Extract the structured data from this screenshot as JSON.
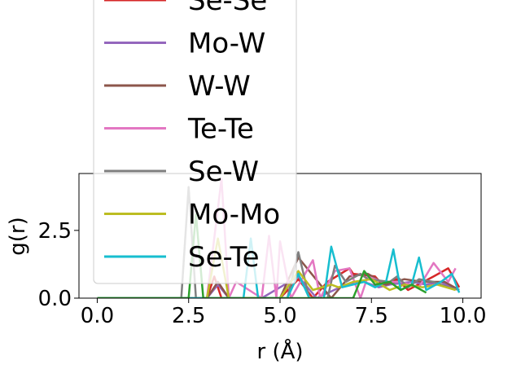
{
  "chart_data": {
    "type": "line",
    "xlabel": "r (Å)",
    "ylabel": "g(r)",
    "xlim": [
      -0.5,
      10.5
    ],
    "ylim": [
      0,
      4.6
    ],
    "xticks": [
      0.0,
      2.5,
      5.0,
      7.5,
      10.0
    ],
    "xtick_labels": [
      "0.0",
      "2.5",
      "5.0",
      "7.5",
      "10.0"
    ],
    "yticks": [
      0.0,
      2.5
    ],
    "ytick_labels": [
      "0.0",
      "2.5"
    ],
    "grid": false,
    "legend": "upper-left",
    "series": [
      {
        "name": "Se-Se",
        "color": "#d62728",
        "x": [
          0.0,
          2.0,
          3.0,
          3.2,
          3.4,
          4.4,
          4.7,
          5.0,
          5.5,
          5.9,
          6.3,
          6.9,
          7.0,
          7.6,
          7.8,
          8.2,
          8.5,
          9.2,
          9.6,
          9.9
        ],
        "y": [
          0,
          0,
          0,
          0.8,
          0,
          0,
          0,
          0,
          0.7,
          0,
          0.6,
          1.1,
          0.9,
          0.8,
          0.5,
          0.7,
          0.3,
          0.8,
          1.1,
          0.4
        ]
      },
      {
        "name": "Mo-W",
        "color": "#9467bd",
        "x": [
          0.0,
          3.0,
          3.3,
          3.6,
          4.5,
          5.5,
          6.0,
          6.8,
          7.3,
          7.7,
          8.0,
          8.6,
          9.0,
          9.4,
          9.8
        ],
        "y": [
          0,
          0,
          0.5,
          0,
          0,
          0.8,
          0,
          0.5,
          0.6,
          0.4,
          0.5,
          0.6,
          0.5,
          0.6,
          0.3
        ]
      },
      {
        "name": "W-W",
        "color": "#8c564b",
        "x": [
          0.0,
          3.0,
          3.3,
          3.6,
          5.0,
          5.5,
          6.4,
          6.9,
          7.4,
          7.9,
          8.4,
          8.9,
          9.5,
          9.9
        ],
        "y": [
          0,
          0,
          0.6,
          0,
          0,
          1.5,
          0,
          0.8,
          0.9,
          0.5,
          0.7,
          0.6,
          0.6,
          0.3
        ]
      },
      {
        "name": "Te-Te",
        "color": "#e377c2",
        "x": [
          0.0,
          3.0,
          3.4,
          3.6,
          3.8,
          4.5,
          4.7,
          4.9,
          5.0,
          5.3,
          5.9,
          6.1,
          6.5,
          6.9,
          7.2,
          7.4,
          7.8,
          8.3,
          8.8,
          9.2,
          9.6,
          9.8
        ],
        "y": [
          0,
          0,
          4.4,
          0,
          0.6,
          0,
          2.3,
          0,
          2.1,
          0,
          1.4,
          0,
          1.0,
          1.1,
          0,
          0.8,
          0.6,
          0.6,
          0.4,
          1.3,
          0.6,
          1.1
        ]
      },
      {
        "name": "Se-W",
        "color": "#7f7f7f",
        "x": [
          0.0,
          2.3,
          2.5,
          2.7,
          5.2,
          5.5,
          5.8,
          6.3,
          6.5,
          6.8,
          7.2,
          7.4,
          8.0,
          8.2,
          8.5,
          8.8,
          9.2,
          9.6,
          9.9
        ],
        "y": [
          0,
          0,
          4.1,
          0,
          0,
          1.7,
          0,
          0,
          1.2,
          0.6,
          0.9,
          0.7,
          0.6,
          0.8,
          0.4,
          0.7,
          0.6,
          0.4,
          0.3
        ]
      },
      {
        "name": "Mo-Mo",
        "color": "#bcbd22",
        "x": [
          0.0,
          3.0,
          3.3,
          3.6,
          5.0,
          5.5,
          5.9,
          6.4,
          6.6,
          7.0,
          7.5,
          8.0,
          8.4,
          8.9,
          9.3,
          9.8
        ],
        "y": [
          0,
          0,
          2.2,
          0,
          0,
          1.0,
          0.3,
          0.5,
          0.4,
          0.6,
          0.7,
          0.3,
          0.5,
          0.4,
          0.5,
          0.3
        ]
      },
      {
        "name": "Se-Te",
        "color": "#17becf",
        "x": [
          0.0,
          4.0,
          4.2,
          4.4,
          5.2,
          5.5,
          5.8,
          6.2,
          6.4,
          6.7,
          7.3,
          7.6,
          7.9,
          8.1,
          8.3,
          8.6,
          8.8,
          9.0,
          9.4,
          9.7,
          9.9
        ],
        "y": [
          0,
          0,
          2.2,
          0,
          0,
          0.9,
          0,
          0,
          1.9,
          0.4,
          0.6,
          0.4,
          0.6,
          1.8,
          0.3,
          0.5,
          1.5,
          0.3,
          0.6,
          0.9,
          0.2
        ]
      },
      {
        "name": "",
        "color": "#2ca02c",
        "x": [
          0.0,
          2.5,
          2.7,
          2.9,
          7.0,
          7.3,
          7.6,
          8.0,
          8.3,
          8.6,
          9.0
        ],
        "y": [
          0,
          0,
          3.1,
          0,
          0,
          1.0,
          0.5,
          0.6,
          0.3,
          0.5,
          0.2
        ]
      }
    ]
  }
}
